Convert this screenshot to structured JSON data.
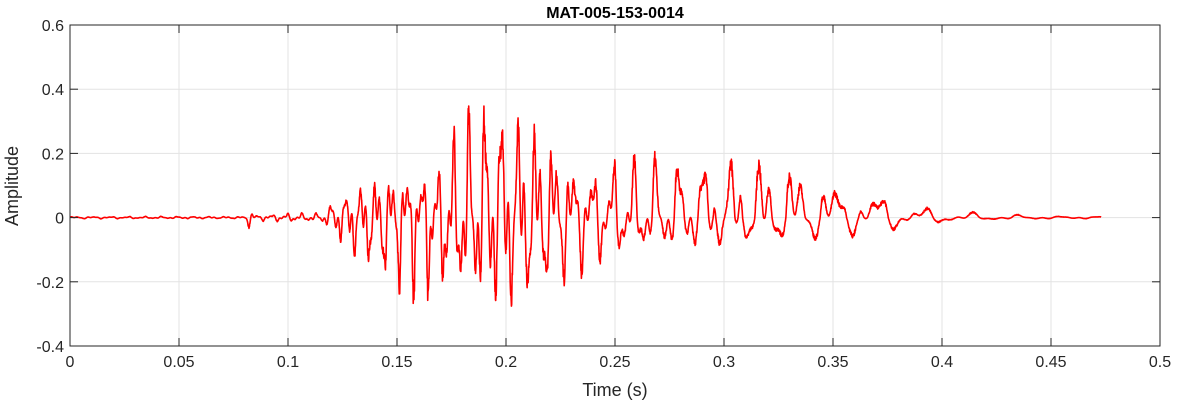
{
  "chart_data": {
    "type": "line",
    "title": "MAT-005-153-0014",
    "xlabel": "Time (s)",
    "ylabel": "Amplitude",
    "xlim": [
      0,
      0.5
    ],
    "ylim": [
      -0.4,
      0.6
    ],
    "xticks": [
      0,
      0.05,
      0.1,
      0.15,
      0.2,
      0.25,
      0.3,
      0.35,
      0.4,
      0.45,
      0.5
    ],
    "xtick_labels": [
      "0",
      "0.05",
      "0.1",
      "0.15",
      "0.2",
      "0.25",
      "0.3",
      "0.35",
      "0.4",
      "0.45",
      "0.5"
    ],
    "yticks": [
      -0.4,
      -0.2,
      0,
      0.2,
      0.4,
      0.6
    ],
    "ytick_labels": [
      "-0.4",
      "-0.2",
      "0",
      "0.2",
      "0.4",
      "0.6"
    ],
    "grid": true,
    "series": [
      {
        "color": "#ff0000",
        "x_end": 0.473,
        "envelope_t": [
          0,
          0.08,
          0.082,
          0.085,
          0.1,
          0.115,
          0.12,
          0.13,
          0.15,
          0.17,
          0.18,
          0.19,
          0.195,
          0.2,
          0.21,
          0.22,
          0.23,
          0.24,
          0.25,
          0.27,
          0.3,
          0.31,
          0.33,
          0.35,
          0.37,
          0.38,
          0.39,
          0.4,
          0.42,
          0.45,
          0.473
        ],
        "envelope_pos": [
          0.004,
          0.004,
          0.04,
          0.01,
          0.015,
          0.015,
          0.05,
          0.1,
          0.16,
          0.18,
          0.36,
          0.42,
          0.45,
          0.4,
          0.36,
          0.3,
          0.22,
          0.19,
          0.2,
          0.2,
          0.22,
          0.22,
          0.2,
          0.15,
          0.1,
          0.08,
          0.04,
          0.025,
          0.015,
          0.005,
          0.004
        ],
        "envelope_neg": [
          -0.004,
          -0.004,
          -0.035,
          -0.01,
          -0.015,
          -0.015,
          -0.05,
          -0.15,
          -0.25,
          -0.3,
          -0.32,
          -0.3,
          -0.32,
          -0.33,
          -0.3,
          -0.25,
          -0.2,
          -0.16,
          -0.15,
          -0.12,
          -0.1,
          -0.09,
          -0.08,
          -0.07,
          -0.05,
          -0.04,
          -0.03,
          -0.02,
          -0.01,
          -0.005,
          -0.004
        ]
      }
    ]
  }
}
